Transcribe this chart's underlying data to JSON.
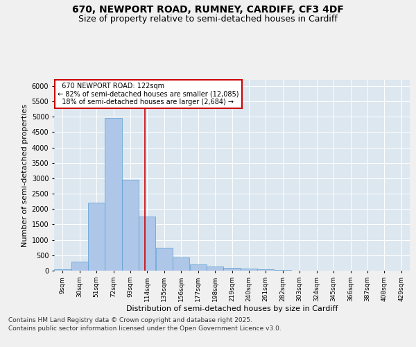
{
  "title_line1": "670, NEWPORT ROAD, RUMNEY, CARDIFF, CF3 4DF",
  "title_line2": "Size of property relative to semi-detached houses in Cardiff",
  "xlabel": "Distribution of semi-detached houses by size in Cardiff",
  "ylabel": "Number of semi-detached properties",
  "footer_line1": "Contains HM Land Registry data © Crown copyright and database right 2025.",
  "footer_line2": "Contains public sector information licensed under the Open Government Licence v3.0.",
  "property_size": 122,
  "property_label": "670 NEWPORT ROAD: 122sqm",
  "pct_smaller": 82,
  "count_smaller": 12085,
  "pct_larger": 18,
  "count_larger": 2684,
  "bin_labels": [
    "9sqm",
    "30sqm",
    "51sqm",
    "72sqm",
    "93sqm",
    "114sqm",
    "135sqm",
    "156sqm",
    "177sqm",
    "198sqm",
    "219sqm",
    "240sqm",
    "261sqm",
    "282sqm",
    "303sqm",
    "324sqm",
    "345sqm",
    "366sqm",
    "387sqm",
    "408sqm",
    "429sqm"
  ],
  "bin_left_edges": [
    9,
    30,
    51,
    72,
    93,
    114,
    135,
    156,
    177,
    198,
    219,
    240,
    261,
    282,
    303,
    324,
    345,
    366,
    387,
    408,
    429
  ],
  "bin_width": 21,
  "bar_heights": [
    50,
    300,
    2200,
    4950,
    2950,
    1750,
    750,
    420,
    200,
    130,
    90,
    60,
    40,
    20,
    10,
    5,
    3,
    2,
    1,
    1,
    0
  ],
  "bar_facecolor": "#aec6e8",
  "bar_edgecolor": "#5a9fd4",
  "vline_x": 122,
  "vline_color": "#cc0000",
  "ylim": [
    0,
    6200
  ],
  "yticks": [
    0,
    500,
    1000,
    1500,
    2000,
    2500,
    3000,
    3500,
    4000,
    4500,
    5000,
    5500,
    6000
  ],
  "bg_color": "#dde7f0",
  "fig_color": "#f0f0f0",
  "annotation_box_color": "#cc0000",
  "title_fontsize": 10,
  "subtitle_fontsize": 9,
  "axis_label_fontsize": 8,
  "tick_fontsize": 7,
  "footer_fontsize": 6.5
}
